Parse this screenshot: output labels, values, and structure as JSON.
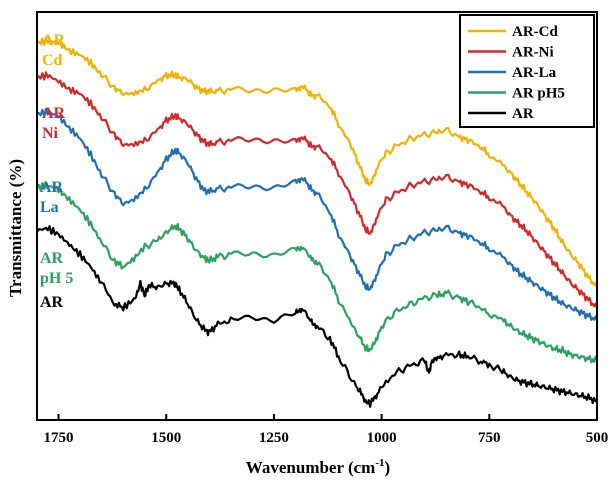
{
  "chart_data": {
    "type": "line",
    "title": "",
    "xlabel": "Wavenumber (cm",
    "xlabel_sup": "-1",
    "xlabel_close": ")",
    "ylabel": "Transmittance (%)",
    "xlim": [
      1800,
      500
    ],
    "x_reversed": true,
    "ylim": [
      0,
      10
    ],
    "x_ticks": [
      1750,
      1500,
      1250,
      1000,
      750,
      500
    ],
    "y_ticks_shown": false,
    "grid": false,
    "legend": {
      "position": "top-right",
      "entries": [
        "AR-Cd",
        "AR-Ni",
        "AR-La",
        "AR pH5",
        "AR"
      ]
    },
    "series": [
      {
        "name": "AR-Cd",
        "color": "#f0b400",
        "curve_labels": [
          "AR",
          "Cd"
        ],
        "x": [
          1800,
          1775,
          1750,
          1725,
          1700,
          1675,
          1650,
          1620,
          1600,
          1575,
          1550,
          1520,
          1500,
          1480,
          1470,
          1450,
          1430,
          1410,
          1400,
          1380,
          1350,
          1300,
          1250,
          1200,
          1185,
          1165,
          1150,
          1120,
          1100,
          1070,
          1050,
          1035,
          1025,
          1010,
          990,
          960,
          930,
          900,
          870,
          850,
          820,
          800,
          770,
          750,
          720,
          700,
          680,
          660,
          640,
          620,
          600,
          580,
          560,
          540,
          520,
          500
        ],
        "y": [
          9.25,
          9.3,
          9.25,
          9.05,
          8.95,
          8.75,
          8.45,
          8.15,
          8.0,
          8.0,
          8.1,
          8.3,
          8.45,
          8.45,
          8.4,
          8.35,
          8.15,
          8.05,
          8.05,
          8.05,
          8.1,
          8.1,
          8.1,
          8.05,
          8.2,
          8.0,
          7.95,
          7.7,
          7.25,
          6.7,
          6.2,
          5.85,
          5.75,
          6.2,
          6.55,
          6.75,
          6.9,
          7.0,
          7.05,
          7.1,
          6.95,
          6.85,
          6.7,
          6.5,
          6.25,
          6.05,
          5.8,
          5.55,
          5.3,
          5.0,
          4.7,
          4.35,
          4.05,
          3.8,
          3.5,
          3.25
        ]
      },
      {
        "name": "AR-Ni",
        "color": "#d62728",
        "curve_labels": [
          "AR",
          "Ni"
        ],
        "x": [
          1800,
          1775,
          1750,
          1725,
          1700,
          1675,
          1650,
          1620,
          1600,
          1575,
          1550,
          1520,
          1500,
          1480,
          1470,
          1450,
          1430,
          1410,
          1400,
          1380,
          1350,
          1300,
          1250,
          1200,
          1185,
          1165,
          1150,
          1120,
          1100,
          1070,
          1050,
          1035,
          1025,
          1010,
          990,
          960,
          930,
          900,
          870,
          850,
          820,
          800,
          770,
          750,
          720,
          700,
          680,
          660,
          640,
          620,
          600,
          580,
          560,
          540,
          520,
          500
        ],
        "y": [
          8.4,
          8.45,
          8.3,
          8.1,
          8.0,
          7.75,
          7.4,
          7.0,
          6.75,
          6.75,
          6.85,
          7.1,
          7.35,
          7.45,
          7.4,
          7.25,
          7.0,
          6.8,
          6.75,
          6.8,
          6.85,
          6.9,
          6.85,
          6.8,
          6.95,
          6.75,
          6.7,
          6.45,
          6.05,
          5.45,
          5.0,
          4.65,
          4.55,
          5.0,
          5.4,
          5.6,
          5.75,
          5.85,
          5.9,
          5.95,
          5.85,
          5.75,
          5.6,
          5.45,
          5.25,
          5.0,
          4.8,
          4.6,
          4.35,
          4.1,
          3.85,
          3.6,
          3.35,
          3.15,
          2.95,
          2.75
        ]
      },
      {
        "name": "AR-La",
        "color": "#1f6fb4",
        "curve_labels": [
          "AR",
          "La"
        ],
        "x": [
          1800,
          1775,
          1750,
          1725,
          1700,
          1675,
          1650,
          1620,
          1600,
          1575,
          1550,
          1520,
          1500,
          1480,
          1470,
          1450,
          1430,
          1410,
          1400,
          1380,
          1350,
          1300,
          1250,
          1200,
          1185,
          1165,
          1150,
          1120,
          1100,
          1070,
          1050,
          1035,
          1025,
          1010,
          990,
          960,
          930,
          900,
          870,
          850,
          820,
          800,
          770,
          750,
          720,
          700,
          680,
          660,
          640,
          620,
          600,
          580,
          560,
          540,
          520,
          500
        ],
        "y": [
          7.5,
          7.55,
          7.45,
          7.15,
          6.9,
          6.5,
          6.0,
          5.55,
          5.3,
          5.4,
          5.65,
          6.05,
          6.4,
          6.6,
          6.55,
          6.3,
          5.9,
          5.6,
          5.6,
          5.65,
          5.7,
          5.75,
          5.7,
          5.8,
          5.95,
          5.7,
          5.55,
          5.1,
          4.55,
          3.95,
          3.55,
          3.25,
          3.2,
          3.6,
          4.05,
          4.3,
          4.45,
          4.6,
          4.65,
          4.7,
          4.6,
          4.5,
          4.35,
          4.2,
          4.0,
          3.8,
          3.6,
          3.45,
          3.3,
          3.15,
          3.0,
          2.85,
          2.75,
          2.65,
          2.55,
          2.45
        ]
      },
      {
        "name": "AR pH5",
        "color": "#2ca25f",
        "curve_labels": [
          "AR",
          "pH 5"
        ],
        "x": [
          1800,
          1775,
          1750,
          1725,
          1700,
          1675,
          1650,
          1620,
          1600,
          1575,
          1550,
          1520,
          1500,
          1480,
          1470,
          1450,
          1430,
          1410,
          1400,
          1380,
          1350,
          1300,
          1250,
          1200,
          1185,
          1165,
          1150,
          1120,
          1100,
          1070,
          1050,
          1035,
          1025,
          1010,
          990,
          960,
          930,
          900,
          870,
          850,
          820,
          800,
          770,
          750,
          720,
          700,
          680,
          660,
          640,
          620,
          600,
          580,
          560,
          540,
          520,
          500
        ],
        "y": [
          5.7,
          5.75,
          5.65,
          5.4,
          5.15,
          4.8,
          4.35,
          3.9,
          3.75,
          3.95,
          4.25,
          4.4,
          4.6,
          4.75,
          4.7,
          4.45,
          4.15,
          3.95,
          3.9,
          4.0,
          4.05,
          4.1,
          4.05,
          4.15,
          4.25,
          4.0,
          3.85,
          3.45,
          2.95,
          2.35,
          2.0,
          1.75,
          1.7,
          2.05,
          2.45,
          2.7,
          2.85,
          3.0,
          3.05,
          3.1,
          3.0,
          2.9,
          2.75,
          2.6,
          2.45,
          2.3,
          2.15,
          2.05,
          1.95,
          1.85,
          1.75,
          1.7,
          1.6,
          1.55,
          1.5,
          1.45
        ]
      },
      {
        "name": "AR",
        "color": "#000000",
        "curve_labels": [
          "AR"
        ],
        "x": [
          1800,
          1775,
          1750,
          1725,
          1700,
          1675,
          1650,
          1620,
          1600,
          1575,
          1560,
          1550,
          1540,
          1520,
          1500,
          1480,
          1470,
          1450,
          1430,
          1410,
          1400,
          1380,
          1350,
          1300,
          1250,
          1200,
          1185,
          1165,
          1150,
          1120,
          1100,
          1070,
          1050,
          1035,
          1025,
          1010,
          990,
          960,
          930,
          900,
          890,
          885,
          870,
          850,
          820,
          800,
          770,
          750,
          720,
          700,
          680,
          660,
          640,
          620,
          600,
          580,
          560,
          540,
          520,
          500
        ],
        "y": [
          4.65,
          4.7,
          4.55,
          4.3,
          4.05,
          3.75,
          3.35,
          2.85,
          2.75,
          2.95,
          3.35,
          3.05,
          3.3,
          3.25,
          3.35,
          3.35,
          3.2,
          2.85,
          2.45,
          2.2,
          2.15,
          2.35,
          2.45,
          2.55,
          2.45,
          2.6,
          2.75,
          2.45,
          2.3,
          2.0,
          1.55,
          1.0,
          0.7,
          0.45,
          0.4,
          0.65,
          0.95,
          1.2,
          1.35,
          1.45,
          1.15,
          1.4,
          1.5,
          1.6,
          1.6,
          1.55,
          1.45,
          1.35,
          1.2,
          1.05,
          0.95,
          0.9,
          0.85,
          0.8,
          0.75,
          0.7,
          0.65,
          0.6,
          0.55,
          0.45
        ]
      }
    ]
  }
}
